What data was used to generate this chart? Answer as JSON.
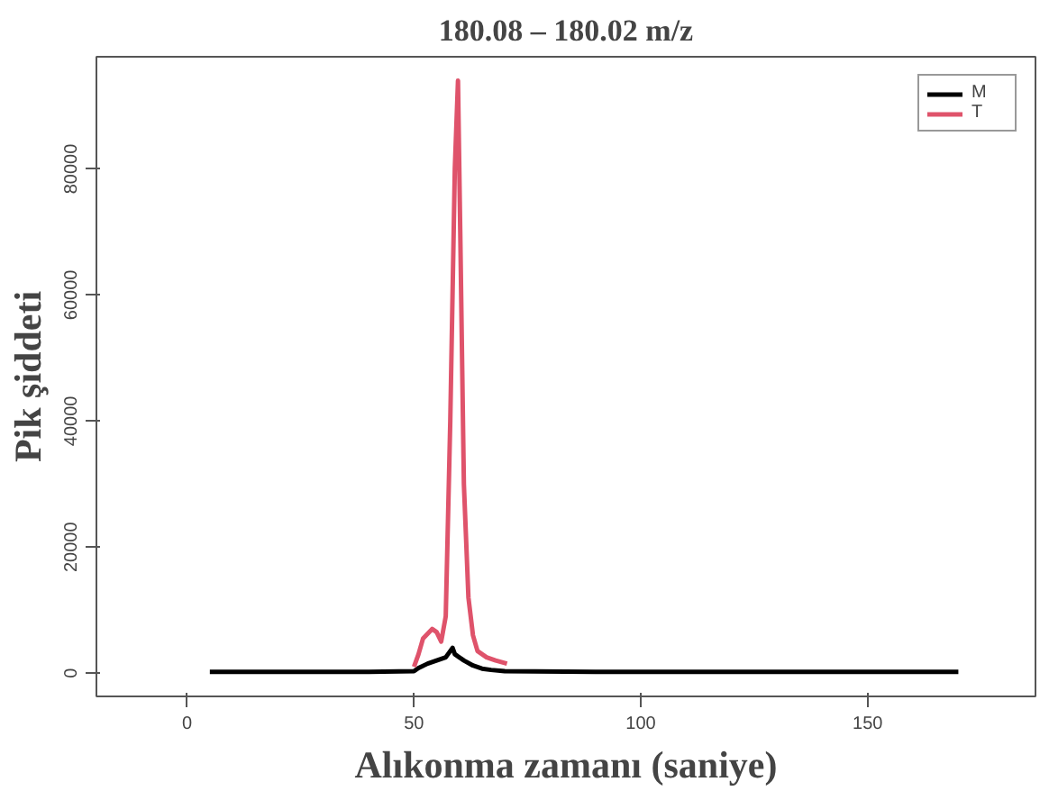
{
  "chart_data": {
    "type": "line",
    "title": "180.08 – 180.02 m/z",
    "xlabel": "Alıkonma zamanı (saniye)",
    "ylabel": "Pik şiddeti",
    "xlim": [
      -20,
      187
    ],
    "ylim": [
      -3700,
      97800
    ],
    "xticks": [
      0,
      50,
      100,
      150
    ],
    "yticks": [
      0,
      20000,
      40000,
      60000,
      80000
    ],
    "grid": false,
    "legend": "top right",
    "series": [
      {
        "name": "M",
        "color": "#000000",
        "x": [
          5,
          20,
          40,
          50,
          51,
          53,
          55,
          57,
          58.5,
          59,
          61,
          63,
          65,
          67,
          70,
          90,
          120,
          150,
          170
        ],
        "values": [
          200,
          200,
          200,
          300,
          800,
          1500,
          2000,
          2500,
          4000,
          3000,
          2000,
          1200,
          700,
          500,
          300,
          200,
          200,
          200,
          200
        ]
      },
      {
        "name": "T",
        "color": "#df536b",
        "x": [
          50,
          51,
          52,
          54,
          55,
          56,
          57,
          58,
          59,
          59.7,
          60.2,
          61,
          62,
          63,
          64,
          66,
          68,
          70.5
        ],
        "values": [
          1000,
          3000,
          5500,
          7000,
          6500,
          5000,
          9000,
          40000,
          80000,
          94000,
          70000,
          30000,
          12000,
          6000,
          3500,
          2500,
          2000,
          1500
        ]
      }
    ]
  }
}
